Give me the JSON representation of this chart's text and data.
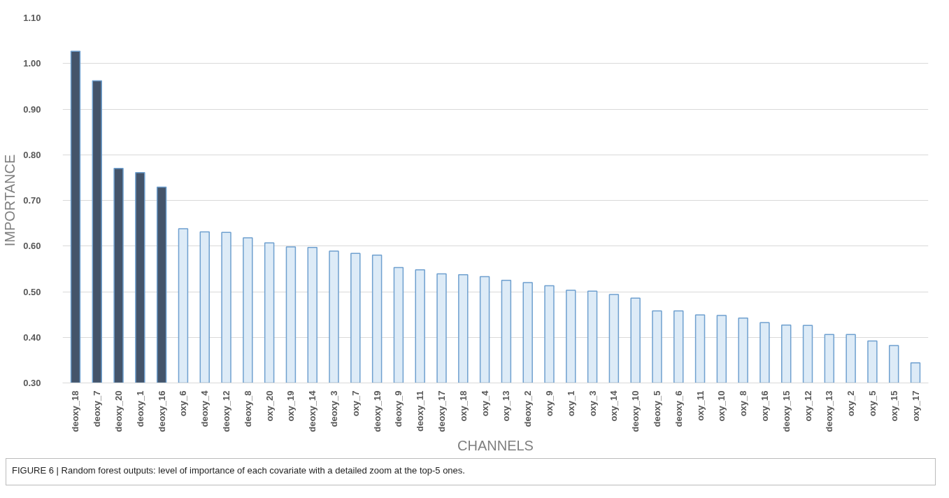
{
  "chart_data": {
    "type": "bar",
    "xlabel": "CHANNELS",
    "ylabel": "IMPORTANCE",
    "categories": [
      "deoxy_18",
      "deoxy_7",
      "deoxy_20",
      "deoxy_1",
      "deoxy_16",
      "oxy_6",
      "deoxy_4",
      "deoxy_12",
      "deoxy_8",
      "oxy_20",
      "oxy_19",
      "deoxy_14",
      "deoxy_3",
      "oxy_7",
      "deoxy_19",
      "deoxy_9",
      "deoxy_11",
      "deoxy_17",
      "oxy_18",
      "oxy_4",
      "oxy_13",
      "deoxy_2",
      "oxy_9",
      "oxy_1",
      "oxy_3",
      "oxy_14",
      "deoxy_10",
      "deoxy_5",
      "deoxy_6",
      "oxy_11",
      "oxy_10",
      "oxy_8",
      "oxy_16",
      "deoxy_15",
      "oxy_12",
      "deoxy_13",
      "oxy_2",
      "oxy_5",
      "oxy_15",
      "oxy_17"
    ],
    "values": [
      1.027,
      0.962,
      0.77,
      0.761,
      0.729,
      0.638,
      0.631,
      0.63,
      0.618,
      0.607,
      0.598,
      0.597,
      0.589,
      0.584,
      0.58,
      0.553,
      0.548,
      0.539,
      0.537,
      0.533,
      0.525,
      0.52,
      0.513,
      0.503,
      0.501,
      0.494,
      0.486,
      0.458,
      0.458,
      0.449,
      0.448,
      0.442,
      0.432,
      0.427,
      0.426,
      0.406,
      0.406,
      0.392,
      0.382,
      0.344
    ],
    "colors": [
      "#44546a",
      "#44546a",
      "#44546a",
      "#44546a",
      "#44546a",
      "#ddebf7",
      "#ddebf7",
      "#ddebf7",
      "#ddebf7",
      "#ddebf7",
      "#ddebf7",
      "#ddebf7",
      "#ddebf7",
      "#ddebf7",
      "#ddebf7",
      "#ddebf7",
      "#ddebf7",
      "#ddebf7",
      "#ddebf7",
      "#ddebf7",
      "#ddebf7",
      "#ddebf7",
      "#ddebf7",
      "#ddebf7",
      "#ddebf7",
      "#ddebf7",
      "#ddebf7",
      "#ddebf7",
      "#ddebf7",
      "#ddebf7",
      "#ddebf7",
      "#ddebf7",
      "#ddebf7",
      "#ddebf7",
      "#ddebf7",
      "#ddebf7",
      "#ddebf7",
      "#ddebf7",
      "#ddebf7",
      "#ddebf7"
    ],
    "ylim": [
      0.3,
      1.1
    ],
    "yticks": [
      {
        "value": 0.3,
        "label": "0.30"
      },
      {
        "value": 0.4,
        "label": "0.40"
      },
      {
        "value": 0.5,
        "label": "0.50"
      },
      {
        "value": 0.6,
        "label": "0.60"
      },
      {
        "value": 0.7,
        "label": "0.70"
      },
      {
        "value": 0.8,
        "label": "0.80"
      },
      {
        "value": 0.9,
        "label": "0.90"
      },
      {
        "value": 1.0,
        "label": "1.00"
      },
      {
        "value": 1.1,
        "label": "1.10"
      }
    ],
    "grid": "y",
    "annotations": [
      "FIGURE 6 | Random forest outputs: level of importance of each covariate with a detailed zoom at the top-5 ones."
    ]
  }
}
